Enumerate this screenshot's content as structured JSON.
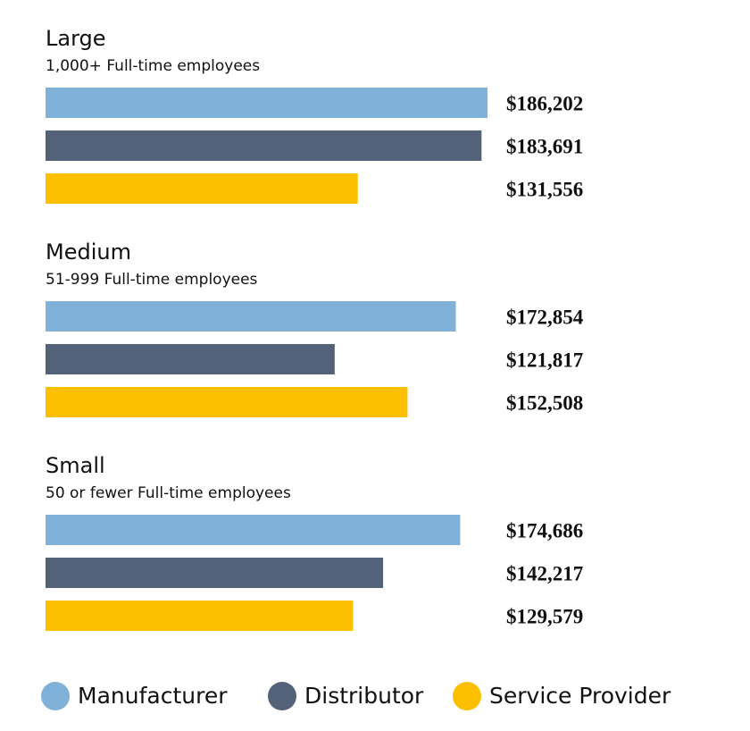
{
  "chart_data": {
    "type": "bar",
    "orientation": "horizontal",
    "categories": [
      "Large",
      "Medium",
      "Small"
    ],
    "category_subtitles": [
      "1,000+ Full-time employees",
      "51-999 Full-time employees",
      "50 or fewer Full-time employees"
    ],
    "series": [
      {
        "name": "Manufacturer",
        "color": "#80b1d8",
        "values": [
          186202,
          172854,
          174686
        ],
        "value_labels": [
          "$186,202",
          "$172,854",
          "$174,686"
        ]
      },
      {
        "name": "Distributor",
        "color": "#536179",
        "values": [
          183691,
          121817,
          142217
        ],
        "value_labels": [
          "$183,691",
          "$121,817",
          "$142,217"
        ]
      },
      {
        "name": "Service Provider",
        "color": "#fdc000",
        "values": [
          131556,
          152508,
          129579
        ],
        "value_labels": [
          "$131,556",
          "$152,508",
          "$129,579"
        ]
      }
    ]
  }
}
